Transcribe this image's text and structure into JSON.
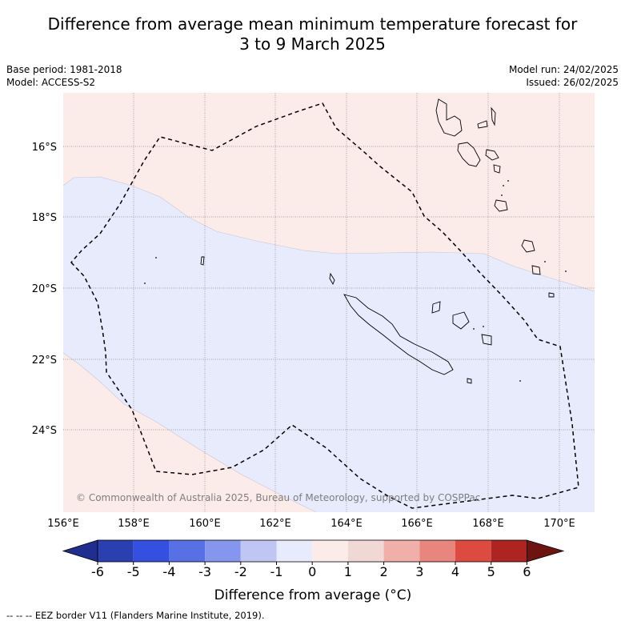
{
  "title": {
    "line1": "Difference from average mean minimum temperature forecast for",
    "line2": "3 to 9 March 2025"
  },
  "meta": {
    "base_period": "Base period: 1981-2018",
    "model": "Model: ACCESS-S2",
    "model_run": "Model run: 24/02/2025",
    "issued": "Issued: 26/02/2025"
  },
  "map": {
    "x_ticks": [
      "156°E",
      "158°E",
      "160°E",
      "162°E",
      "164°E",
      "166°E",
      "168°E",
      "170°E"
    ],
    "y_ticks": [
      "16°S",
      "18°S",
      "20°S",
      "22°S",
      "24°S"
    ],
    "copyright": "© Commonwealth of Australia 2025, Bureau of Meteorology, supported by COSPPac",
    "colors": {
      "warm_light": "#fcece9",
      "cool_light": "#e8ebfb",
      "grid": "#888888",
      "eez": "#000000"
    }
  },
  "colorbar": {
    "ticks": [
      "-6",
      "-5",
      "-4",
      "-3",
      "-2",
      "-1",
      "0",
      "1",
      "2",
      "3",
      "4",
      "5",
      "6"
    ],
    "colors": [
      "#1f2e8f",
      "#2a3fb0",
      "#3350e0",
      "#5870e6",
      "#8496ee",
      "#c0c6f4",
      "#e8ebfb",
      "#fcece9",
      "#f0d8d4",
      "#f0afa8",
      "#e8857d",
      "#dd4a3f",
      "#ad2420",
      "#6e1410"
    ],
    "label": "Difference from average (°C)"
  },
  "legend": {
    "eez": "--  --  -- EEZ border V11 (Flanders Marine Institute, 2019)."
  }
}
